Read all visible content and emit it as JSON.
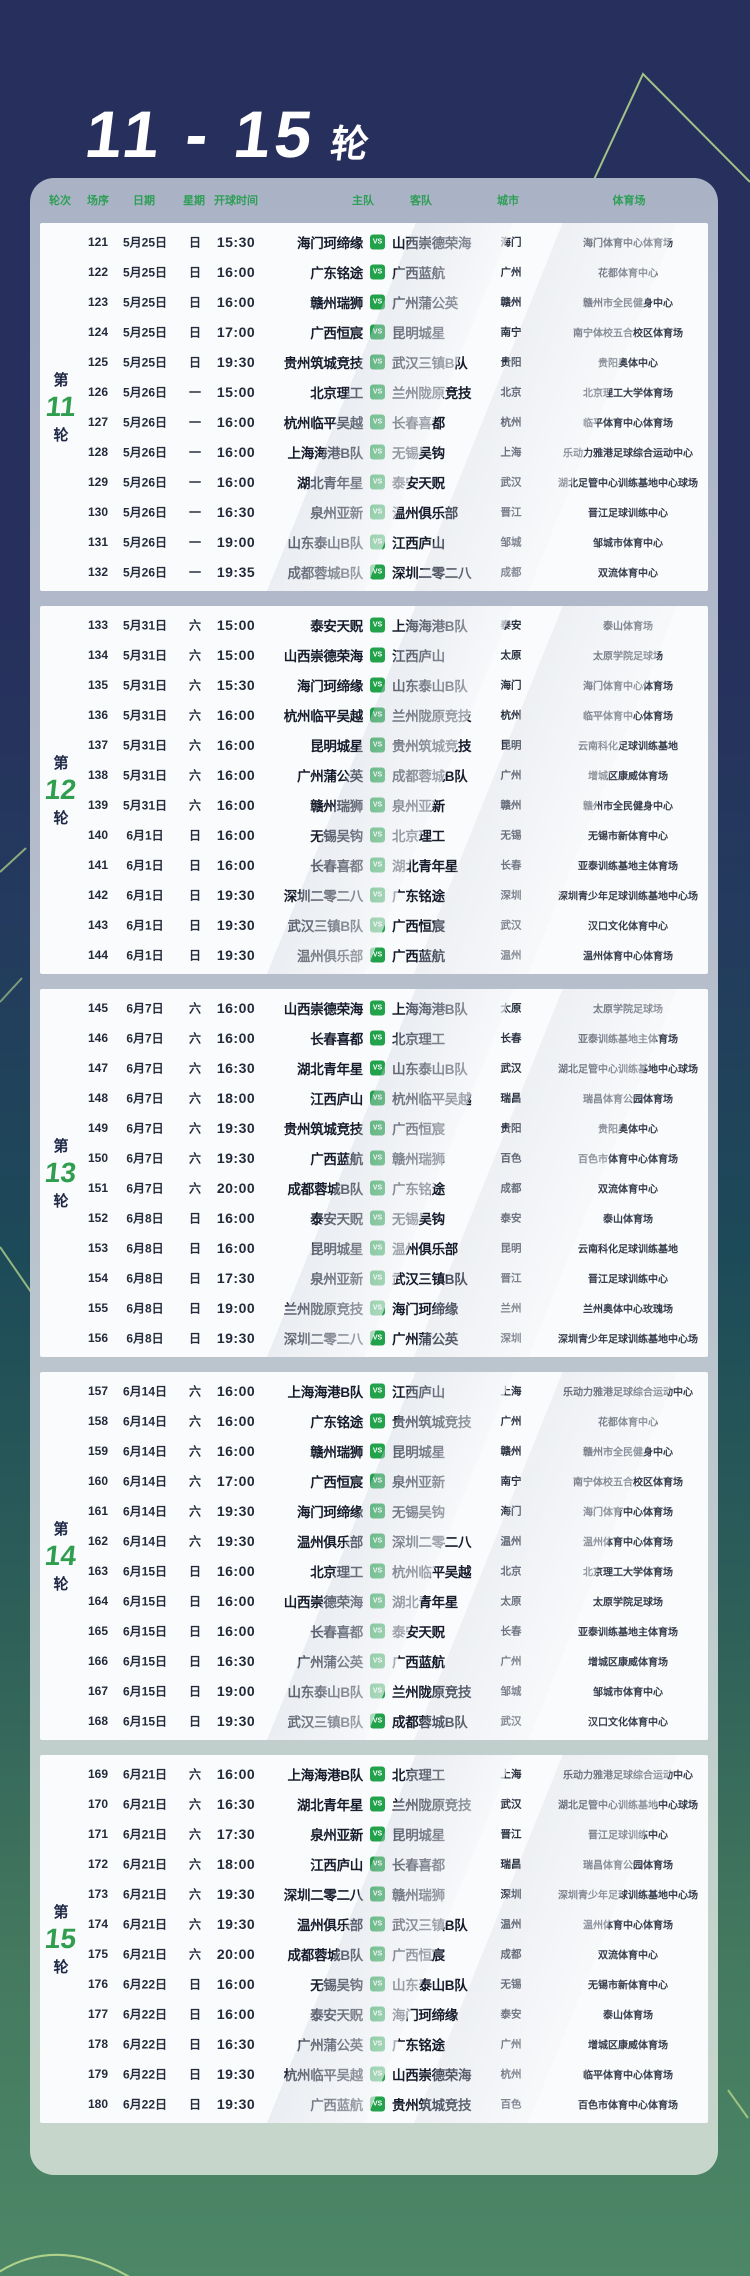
{
  "page": {
    "title_numbers": "11 - 15",
    "title_suffix": "轮"
  },
  "colors": {
    "bg_top": "#272f5c",
    "bg_bottom": "#4c8767",
    "card_top": "#aab3c6",
    "card_bottom": "#c7d6cb",
    "header_green": "#2f9e57",
    "round_number_green": "#2f9e4f",
    "vs_badge_green": "#22a24b",
    "decor_line_green": "#b9da8e"
  },
  "table": {
    "vs_label": "VS",
    "headers": {
      "round": "轮次",
      "order": "场序",
      "date": "日期",
      "weekday": "星期",
      "kickoff": "开球时间",
      "home": "主队",
      "away": "客队",
      "city": "城市",
      "stadium": "体育场"
    },
    "rounds": [
      {
        "prefix": "第",
        "number": "11",
        "suffix": "轮",
        "matches": [
          {
            "no": "121",
            "date": "5月25日",
            "day": "日",
            "time": "15:30",
            "home": "海门珂缔缘",
            "away": "山西崇德荣海",
            "city": "海门",
            "stadium": "海门体育中心体育场"
          },
          {
            "no": "122",
            "date": "5月25日",
            "day": "日",
            "time": "16:00",
            "home": "广东铭途",
            "away": "广西蓝航",
            "city": "广州",
            "stadium": "花都体育中心"
          },
          {
            "no": "123",
            "date": "5月25日",
            "day": "日",
            "time": "16:00",
            "home": "赣州瑞狮",
            "away": "广州蒲公英",
            "city": "赣州",
            "stadium": "赣州市全民健身中心"
          },
          {
            "no": "124",
            "date": "5月25日",
            "day": "日",
            "time": "17:00",
            "home": "广西恒宸",
            "away": "昆明城星",
            "city": "南宁",
            "stadium": "南宁体校五合校区体育场"
          },
          {
            "no": "125",
            "date": "5月25日",
            "day": "日",
            "time": "19:30",
            "home": "贵州筑城竞技",
            "away": "武汉三镇B队",
            "city": "贵阳",
            "stadium": "贵阳奥体中心"
          },
          {
            "no": "126",
            "date": "5月26日",
            "day": "一",
            "time": "15:00",
            "home": "北京理工",
            "away": "兰州陇原竞技",
            "city": "北京",
            "stadium": "北京理工大学体育场"
          },
          {
            "no": "127",
            "date": "5月26日",
            "day": "一",
            "time": "16:00",
            "home": "杭州临平吴越",
            "away": "长春喜都",
            "city": "杭州",
            "stadium": "临平体育中心体育场"
          },
          {
            "no": "128",
            "date": "5月26日",
            "day": "一",
            "time": "16:00",
            "home": "上海海港B队",
            "away": "无锡吴钩",
            "city": "上海",
            "stadium": "乐动力雅港足球综合运动中心"
          },
          {
            "no": "129",
            "date": "5月26日",
            "day": "一",
            "time": "16:00",
            "home": "湖北青年星",
            "away": "泰安天贶",
            "city": "武汉",
            "stadium": "湖北足管中心训练基地中心球场"
          },
          {
            "no": "130",
            "date": "5月26日",
            "day": "一",
            "time": "16:30",
            "home": "泉州亚新",
            "away": "温州俱乐部",
            "city": "晋江",
            "stadium": "晋江足球训练中心"
          },
          {
            "no": "131",
            "date": "5月26日",
            "day": "一",
            "time": "19:00",
            "home": "山东泰山B队",
            "away": "江西庐山",
            "city": "邹城",
            "stadium": "邹城市体育中心"
          },
          {
            "no": "132",
            "date": "5月26日",
            "day": "一",
            "time": "19:35",
            "home": "成都蓉城B队",
            "away": "深圳二零二八",
            "city": "成都",
            "stadium": "双流体育中心"
          }
        ]
      },
      {
        "prefix": "第",
        "number": "12",
        "suffix": "轮",
        "matches": [
          {
            "no": "133",
            "date": "5月31日",
            "day": "六",
            "time": "15:00",
            "home": "泰安天贶",
            "away": "上海海港B队",
            "city": "泰安",
            "stadium": "泰山体育场"
          },
          {
            "no": "134",
            "date": "5月31日",
            "day": "六",
            "time": "15:00",
            "home": "山西崇德荣海",
            "away": "江西庐山",
            "city": "太原",
            "stadium": "太原学院足球场"
          },
          {
            "no": "135",
            "date": "5月31日",
            "day": "六",
            "time": "15:30",
            "home": "海门珂缔缘",
            "away": "山东泰山B队",
            "city": "海门",
            "stadium": "海门体育中心体育场"
          },
          {
            "no": "136",
            "date": "5月31日",
            "day": "六",
            "time": "16:00",
            "home": "杭州临平吴越",
            "away": "兰州陇原竞技",
            "city": "杭州",
            "stadium": "临平体育中心体育场"
          },
          {
            "no": "137",
            "date": "5月31日",
            "day": "六",
            "time": "16:00",
            "home": "昆明城星",
            "away": "贵州筑城竞技",
            "city": "昆明",
            "stadium": "云南科化足球训练基地"
          },
          {
            "no": "138",
            "date": "5月31日",
            "day": "六",
            "time": "16:00",
            "home": "广州蒲公英",
            "away": "成都蓉城B队",
            "city": "广州",
            "stadium": "增城区康威体育场"
          },
          {
            "no": "139",
            "date": "5月31日",
            "day": "六",
            "time": "16:00",
            "home": "赣州瑞狮",
            "away": "泉州亚新",
            "city": "赣州",
            "stadium": "赣州市全民健身中心"
          },
          {
            "no": "140",
            "date": "6月1日",
            "day": "日",
            "time": "16:00",
            "home": "无锡吴钩",
            "away": "北京理工",
            "city": "无锡",
            "stadium": "无锡市新体育中心"
          },
          {
            "no": "141",
            "date": "6月1日",
            "day": "日",
            "time": "16:00",
            "home": "长春喜都",
            "away": "湖北青年星",
            "city": "长春",
            "stadium": "亚泰训练基地主体育场"
          },
          {
            "no": "142",
            "date": "6月1日",
            "day": "日",
            "time": "19:30",
            "home": "深圳二零二八",
            "away": "广东铭途",
            "city": "深圳",
            "stadium": "深圳青少年足球训练基地中心场"
          },
          {
            "no": "143",
            "date": "6月1日",
            "day": "日",
            "time": "19:30",
            "home": "武汉三镇B队",
            "away": "广西恒宸",
            "city": "武汉",
            "stadium": "汉口文化体育中心"
          },
          {
            "no": "144",
            "date": "6月1日",
            "day": "日",
            "time": "19:30",
            "home": "温州俱乐部",
            "away": "广西蓝航",
            "city": "温州",
            "stadium": "温州体育中心体育场"
          }
        ]
      },
      {
        "prefix": "第",
        "number": "13",
        "suffix": "轮",
        "matches": [
          {
            "no": "145",
            "date": "6月7日",
            "day": "六",
            "time": "16:00",
            "home": "山西崇德荣海",
            "away": "上海海港B队",
            "city": "太原",
            "stadium": "太原学院足球场"
          },
          {
            "no": "146",
            "date": "6月7日",
            "day": "六",
            "time": "16:00",
            "home": "长春喜都",
            "away": "北京理工",
            "city": "长春",
            "stadium": "亚泰训练基地主体育场"
          },
          {
            "no": "147",
            "date": "6月7日",
            "day": "六",
            "time": "16:30",
            "home": "湖北青年星",
            "away": "山东泰山B队",
            "city": "武汉",
            "stadium": "湖北足管中心训练基地中心球场"
          },
          {
            "no": "148",
            "date": "6月7日",
            "day": "六",
            "time": "18:00",
            "home": "江西庐山",
            "away": "杭州临平吴越",
            "city": "瑞昌",
            "stadium": "瑞昌体育公园体育场"
          },
          {
            "no": "149",
            "date": "6月7日",
            "day": "六",
            "time": "19:30",
            "home": "贵州筑城竞技",
            "away": "广西恒宸",
            "city": "贵阳",
            "stadium": "贵阳奥体中心"
          },
          {
            "no": "150",
            "date": "6月7日",
            "day": "六",
            "time": "19:30",
            "home": "广西蓝航",
            "away": "赣州瑞狮",
            "city": "百色",
            "stadium": "百色市体育中心体育场"
          },
          {
            "no": "151",
            "date": "6月7日",
            "day": "六",
            "time": "20:00",
            "home": "成都蓉城B队",
            "away": "广东铭途",
            "city": "成都",
            "stadium": "双流体育中心"
          },
          {
            "no": "152",
            "date": "6月8日",
            "day": "日",
            "time": "16:00",
            "home": "泰安天贶",
            "away": "无锡吴钩",
            "city": "泰安",
            "stadium": "泰山体育场"
          },
          {
            "no": "153",
            "date": "6月8日",
            "day": "日",
            "time": "16:00",
            "home": "昆明城星",
            "away": "温州俱乐部",
            "city": "昆明",
            "stadium": "云南科化足球训练基地"
          },
          {
            "no": "154",
            "date": "6月8日",
            "day": "日",
            "time": "17:30",
            "home": "泉州亚新",
            "away": "武汉三镇B队",
            "city": "晋江",
            "stadium": "晋江足球训练中心"
          },
          {
            "no": "155",
            "date": "6月8日",
            "day": "日",
            "time": "19:00",
            "home": "兰州陇原竞技",
            "away": "海门珂缔缘",
            "city": "兰州",
            "stadium": "兰州奥体中心玫瑰场"
          },
          {
            "no": "156",
            "date": "6月8日",
            "day": "日",
            "time": "19:30",
            "home": "深圳二零二八",
            "away": "广州蒲公英",
            "city": "深圳",
            "stadium": "深圳青少年足球训练基地中心场"
          }
        ]
      },
      {
        "prefix": "第",
        "number": "14",
        "suffix": "轮",
        "matches": [
          {
            "no": "157",
            "date": "6月14日",
            "day": "六",
            "time": "16:00",
            "home": "上海海港B队",
            "away": "江西庐山",
            "city": "上海",
            "stadium": "乐动力雅港足球综合运动中心"
          },
          {
            "no": "158",
            "date": "6月14日",
            "day": "六",
            "time": "16:00",
            "home": "广东铭途",
            "away": "贵州筑城竞技",
            "city": "广州",
            "stadium": "花都体育中心"
          },
          {
            "no": "159",
            "date": "6月14日",
            "day": "六",
            "time": "16:00",
            "home": "赣州瑞狮",
            "away": "昆明城星",
            "city": "赣州",
            "stadium": "赣州市全民健身中心"
          },
          {
            "no": "160",
            "date": "6月14日",
            "day": "六",
            "time": "17:00",
            "home": "广西恒宸",
            "away": "泉州亚新",
            "city": "南宁",
            "stadium": "南宁体校五合校区体育场"
          },
          {
            "no": "161",
            "date": "6月14日",
            "day": "六",
            "time": "19:30",
            "home": "海门珂缔缘",
            "away": "无锡吴钩",
            "city": "海门",
            "stadium": "海门体育中心体育场"
          },
          {
            "no": "162",
            "date": "6月14日",
            "day": "六",
            "time": "19:30",
            "home": "温州俱乐部",
            "away": "深圳二零二八",
            "city": "温州",
            "stadium": "温州体育中心体育场"
          },
          {
            "no": "163",
            "date": "6月15日",
            "day": "日",
            "time": "16:00",
            "home": "北京理工",
            "away": "杭州临平吴越",
            "city": "北京",
            "stadium": "北京理工大学体育场"
          },
          {
            "no": "164",
            "date": "6月15日",
            "day": "日",
            "time": "16:00",
            "home": "山西崇德荣海",
            "away": "湖北青年星",
            "city": "太原",
            "stadium": "太原学院足球场"
          },
          {
            "no": "165",
            "date": "6月15日",
            "day": "日",
            "time": "16:00",
            "home": "长春喜都",
            "away": "泰安天贶",
            "city": "长春",
            "stadium": "亚泰训练基地主体育场"
          },
          {
            "no": "166",
            "date": "6月15日",
            "day": "日",
            "time": "16:30",
            "home": "广州蒲公英",
            "away": "广西蓝航",
            "city": "广州",
            "stadium": "增城区康威体育场"
          },
          {
            "no": "167",
            "date": "6月15日",
            "day": "日",
            "time": "19:00",
            "home": "山东泰山B队",
            "away": "兰州陇原竞技",
            "city": "邹城",
            "stadium": "邹城市体育中心"
          },
          {
            "no": "168",
            "date": "6月15日",
            "day": "日",
            "time": "19:30",
            "home": "武汉三镇B队",
            "away": "成都蓉城B队",
            "city": "武汉",
            "stadium": "汉口文化体育中心"
          }
        ]
      },
      {
        "prefix": "第",
        "number": "15",
        "suffix": "轮",
        "matches": [
          {
            "no": "169",
            "date": "6月21日",
            "day": "六",
            "time": "16:00",
            "home": "上海海港B队",
            "away": "北京理工",
            "city": "上海",
            "stadium": "乐动力雅港足球综合运动中心"
          },
          {
            "no": "170",
            "date": "6月21日",
            "day": "六",
            "time": "16:30",
            "home": "湖北青年星",
            "away": "兰州陇原竞技",
            "city": "武汉",
            "stadium": "湖北足管中心训练基地中心球场"
          },
          {
            "no": "171",
            "date": "6月21日",
            "day": "六",
            "time": "17:30",
            "home": "泉州亚新",
            "away": "昆明城星",
            "city": "晋江",
            "stadium": "晋江足球训练中心"
          },
          {
            "no": "172",
            "date": "6月21日",
            "day": "六",
            "time": "18:00",
            "home": "江西庐山",
            "away": "长春喜都",
            "city": "瑞昌",
            "stadium": "瑞昌体育公园体育场"
          },
          {
            "no": "173",
            "date": "6月21日",
            "day": "六",
            "time": "19:30",
            "home": "深圳二零二八",
            "away": "赣州瑞狮",
            "city": "深圳",
            "stadium": "深圳青少年足球训练基地中心场"
          },
          {
            "no": "174",
            "date": "6月21日",
            "day": "六",
            "time": "19:30",
            "home": "温州俱乐部",
            "away": "武汉三镇B队",
            "city": "温州",
            "stadium": "温州体育中心体育场"
          },
          {
            "no": "175",
            "date": "6月21日",
            "day": "六",
            "time": "20:00",
            "home": "成都蓉城B队",
            "away": "广西恒宸",
            "city": "成都",
            "stadium": "双流体育中心"
          },
          {
            "no": "176",
            "date": "6月22日",
            "day": "日",
            "time": "16:00",
            "home": "无锡吴钩",
            "away": "山东泰山B队",
            "city": "无锡",
            "stadium": "无锡市新体育中心"
          },
          {
            "no": "177",
            "date": "6月22日",
            "day": "日",
            "time": "16:00",
            "home": "泰安天贶",
            "away": "海门珂缔缘",
            "city": "泰安",
            "stadium": "泰山体育场"
          },
          {
            "no": "178",
            "date": "6月22日",
            "day": "日",
            "time": "16:30",
            "home": "广州蒲公英",
            "away": "广东铭途",
            "city": "广州",
            "stadium": "增城区康威体育场"
          },
          {
            "no": "179",
            "date": "6月22日",
            "day": "日",
            "time": "19:30",
            "home": "杭州临平吴越",
            "away": "山西崇德荣海",
            "city": "杭州",
            "stadium": "临平体育中心体育场"
          },
          {
            "no": "180",
            "date": "6月22日",
            "day": "日",
            "time": "19:30",
            "home": "广西蓝航",
            "away": "贵州筑城竞技",
            "city": "百色",
            "stadium": "百色市体育中心体育场"
          }
        ]
      }
    ]
  }
}
